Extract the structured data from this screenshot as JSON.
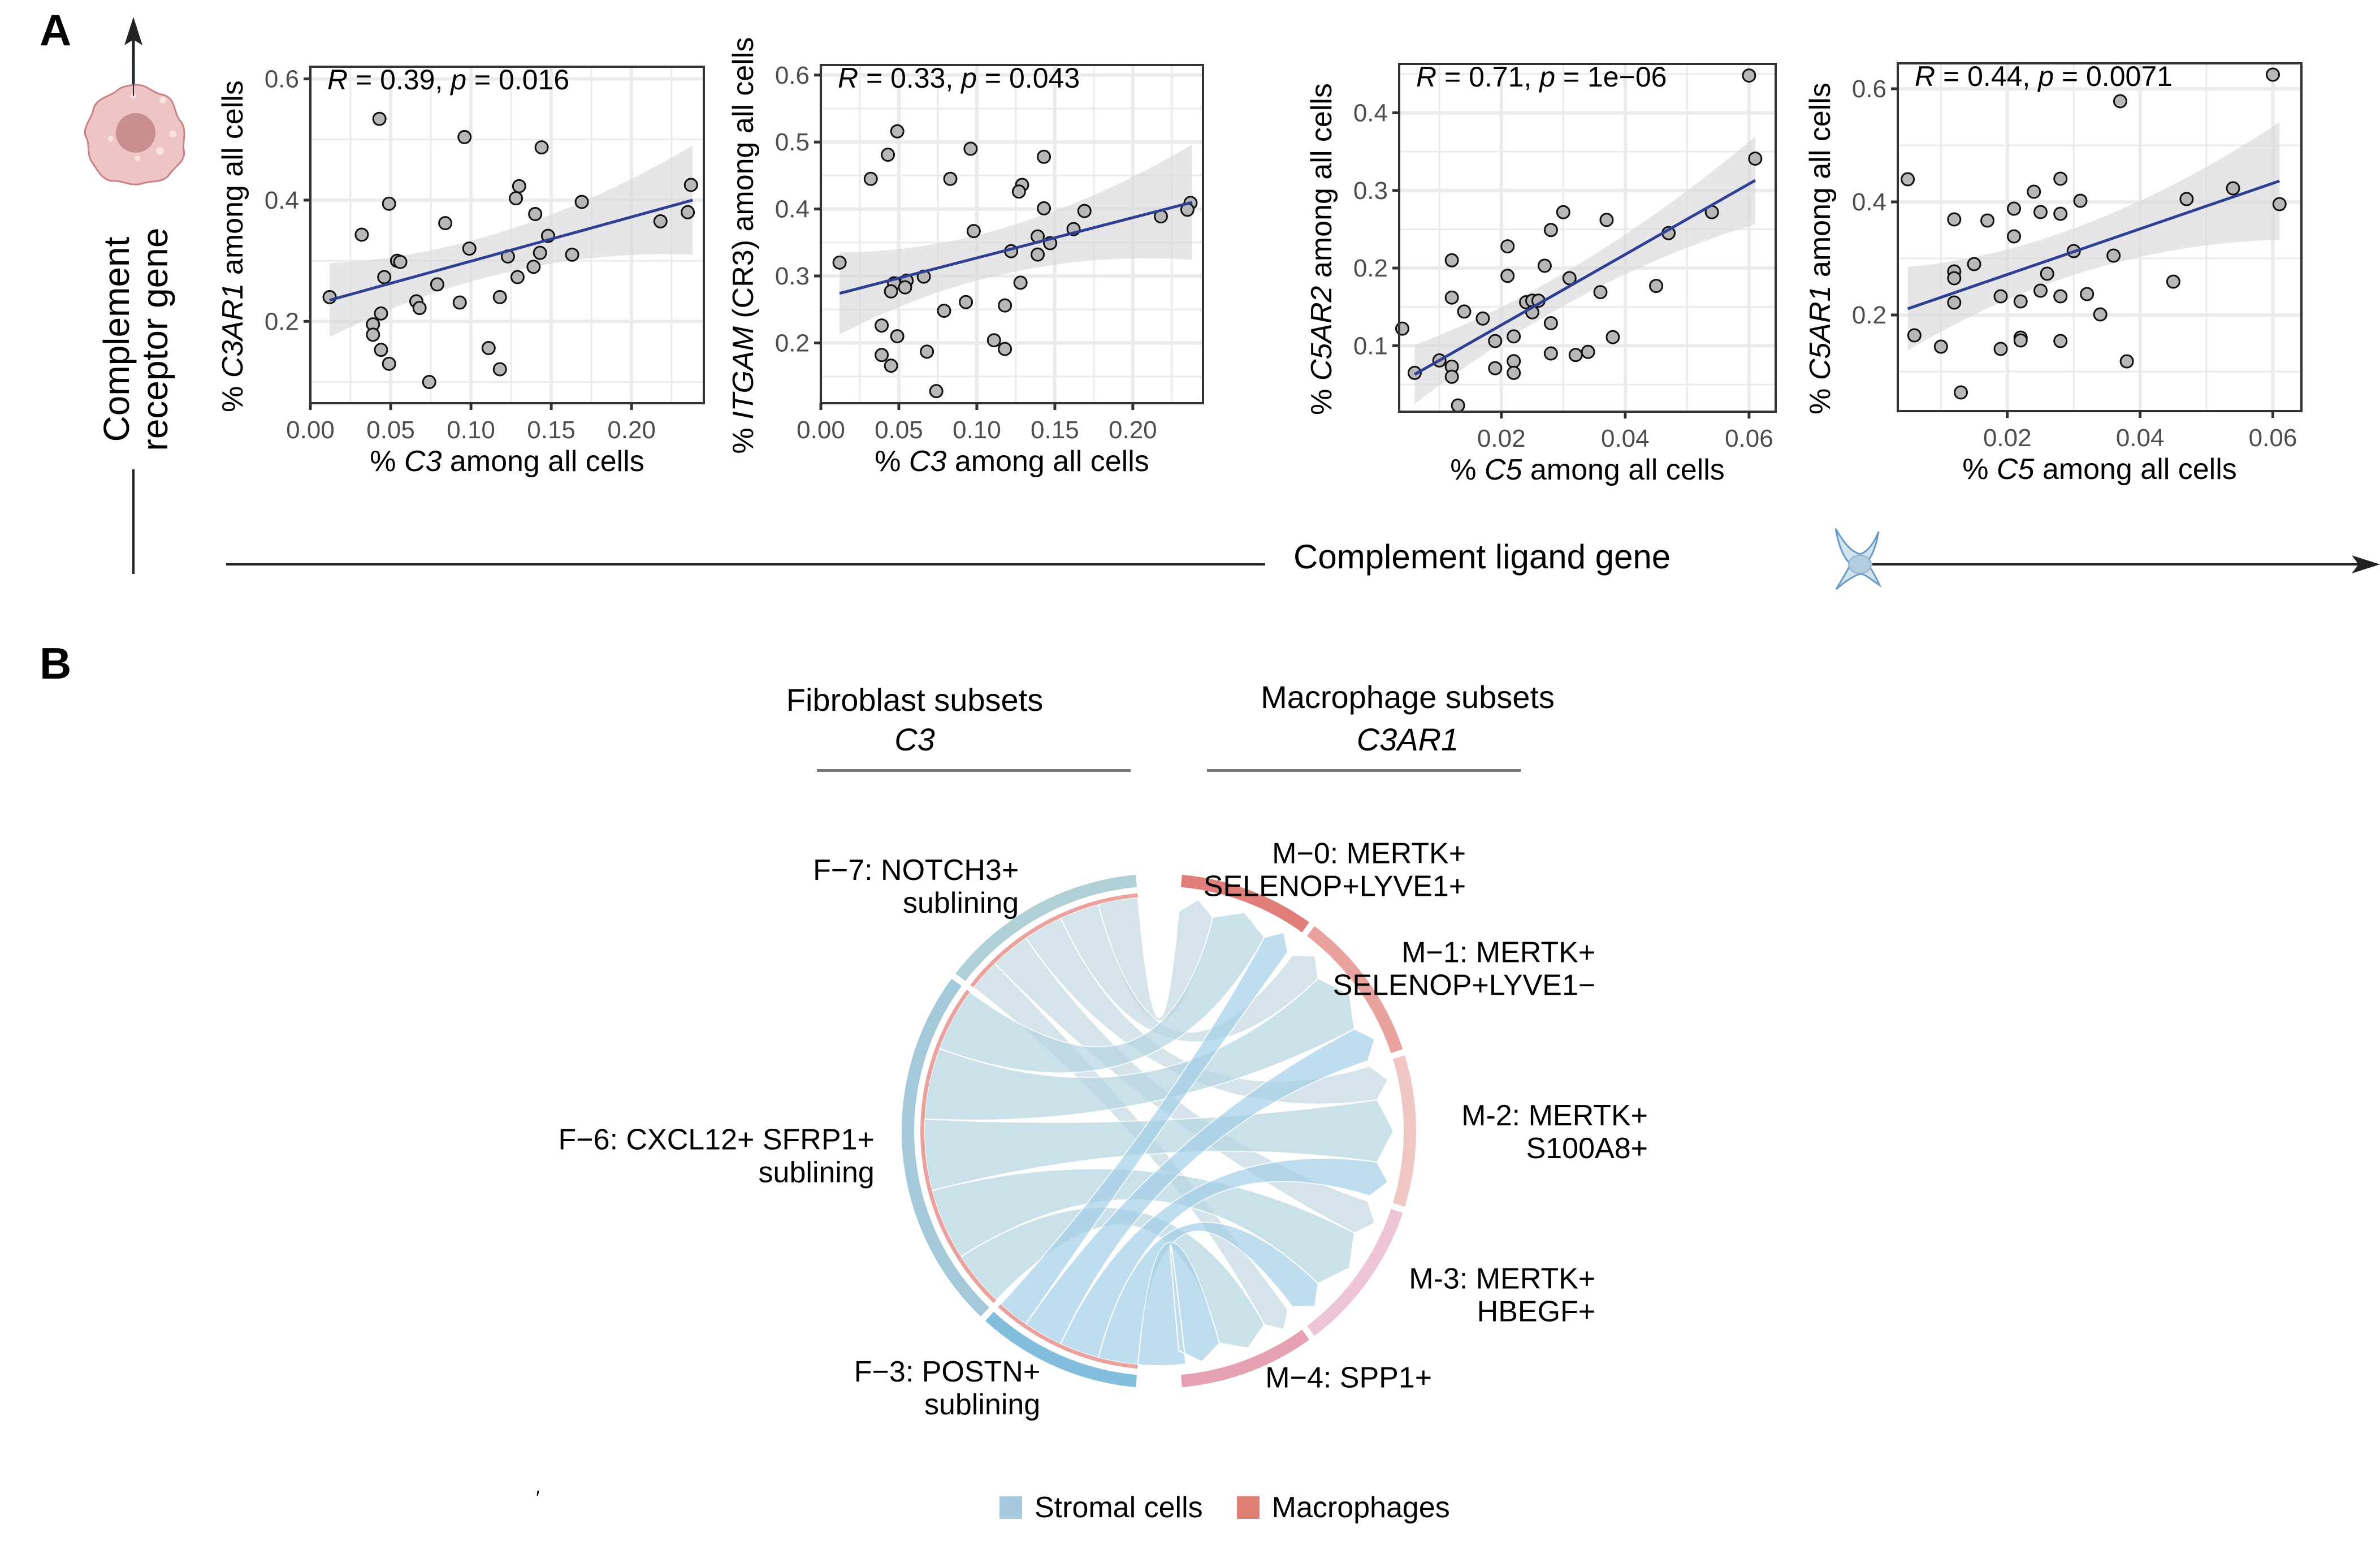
{
  "panels": {
    "A": {
      "letter": "A"
    },
    "B": {
      "letter": "B"
    }
  },
  "axes_annotations": {
    "receptor_axis_label_line1": "Complement",
    "receptor_axis_label_line2": "receptor gene",
    "ligand_axis_label": "Complement ligand gene",
    "receptor_cell_icon": "macrophage-cell-icon",
    "ligand_cell_icon": "fibroblast-cell-icon"
  },
  "chart_data": [
    {
      "type": "scatter",
      "id": "c3-c3ar1",
      "annotation": {
        "R": "0.39",
        "p": "0.016"
      },
      "xlabel": {
        "prefix": "% ",
        "gene": "C3",
        "suffix": " among all cells"
      },
      "ylabel": {
        "prefix": "% ",
        "gene": "C3AR1",
        "suffix": " among all cells"
      },
      "xlim": [
        0.0,
        0.245
      ],
      "ylim": [
        0.065,
        0.62
      ],
      "xticks": [
        0.0,
        0.05,
        0.1,
        0.15,
        0.2
      ],
      "xtick_labels": [
        "0.00",
        "0.05",
        "0.10",
        "0.15",
        "0.20"
      ],
      "yticks": [
        0.2,
        0.4,
        0.6
      ],
      "ytick_labels": [
        "0.2",
        "0.4",
        "0.6"
      ],
      "grid": true,
      "fit": {
        "x": [
          0.012,
          0.238
        ],
        "y": [
          0.235,
          0.4
        ],
        "ci_low": [
          0.168,
          0.31
        ],
        "ci_high": [
          0.29,
          0.49
        ]
      },
      "points": [
        [
          0.043,
          0.534
        ],
        [
          0.096,
          0.504
        ],
        [
          0.144,
          0.487
        ],
        [
          0.13,
          0.423
        ],
        [
          0.128,
          0.403
        ],
        [
          0.049,
          0.394
        ],
        [
          0.169,
          0.397
        ],
        [
          0.237,
          0.425
        ],
        [
          0.14,
          0.377
        ],
        [
          0.235,
          0.38
        ],
        [
          0.218,
          0.365
        ],
        [
          0.084,
          0.362
        ],
        [
          0.032,
          0.343
        ],
        [
          0.148,
          0.341
        ],
        [
          0.099,
          0.32
        ],
        [
          0.054,
          0.3
        ],
        [
          0.056,
          0.298
        ],
        [
          0.143,
          0.313
        ],
        [
          0.123,
          0.307
        ],
        [
          0.163,
          0.31
        ],
        [
          0.046,
          0.273
        ],
        [
          0.139,
          0.29
        ],
        [
          0.129,
          0.273
        ],
        [
          0.079,
          0.261
        ],
        [
          0.012,
          0.24
        ],
        [
          0.066,
          0.233
        ],
        [
          0.068,
          0.222
        ],
        [
          0.093,
          0.231
        ],
        [
          0.118,
          0.24
        ],
        [
          0.044,
          0.213
        ],
        [
          0.039,
          0.195
        ],
        [
          0.039,
          0.178
        ],
        [
          0.044,
          0.153
        ],
        [
          0.049,
          0.13
        ],
        [
          0.111,
          0.156
        ],
        [
          0.118,
          0.121
        ],
        [
          0.074,
          0.1
        ]
      ]
    },
    {
      "type": "scatter",
      "id": "c3-itgam",
      "annotation": {
        "R": "0.33",
        "p": "0.043"
      },
      "xlabel": {
        "prefix": "% ",
        "gene": "C3",
        "suffix": " among all cells"
      },
      "ylabel": {
        "prefix": "% ",
        "gene": "ITGAM",
        "suffix": " (CR3) among all cells"
      },
      "xlim": [
        0.0,
        0.245
      ],
      "ylim": [
        0.11,
        0.615
      ],
      "xticks": [
        0.0,
        0.05,
        0.1,
        0.15,
        0.2
      ],
      "xtick_labels": [
        "0.00",
        "0.05",
        "0.10",
        "0.15",
        "0.20"
      ],
      "yticks": [
        0.2,
        0.3,
        0.4,
        0.5,
        0.6
      ],
      "ytick_labels": [
        "0.2",
        "0.3",
        "0.4",
        "0.5",
        "0.6"
      ],
      "grid": true,
      "fit": {
        "x": [
          0.012,
          0.238
        ],
        "y": [
          0.274,
          0.41
        ],
        "ci_low": [
          0.213,
          0.324
        ],
        "ci_high": [
          0.336,
          0.496
        ]
      },
      "points": [
        [
          0.049,
          0.516
        ],
        [
          0.096,
          0.49
        ],
        [
          0.043,
          0.481
        ],
        [
          0.143,
          0.478
        ],
        [
          0.032,
          0.445
        ],
        [
          0.083,
          0.445
        ],
        [
          0.129,
          0.436
        ],
        [
          0.127,
          0.426
        ],
        [
          0.143,
          0.401
        ],
        [
          0.237,
          0.409
        ],
        [
          0.169,
          0.397
        ],
        [
          0.235,
          0.399
        ],
        [
          0.218,
          0.389
        ],
        [
          0.098,
          0.367
        ],
        [
          0.162,
          0.37
        ],
        [
          0.139,
          0.359
        ],
        [
          0.147,
          0.349
        ],
        [
          0.122,
          0.337
        ],
        [
          0.139,
          0.332
        ],
        [
          0.012,
          0.32
        ],
        [
          0.066,
          0.299
        ],
        [
          0.055,
          0.293
        ],
        [
          0.047,
          0.289
        ],
        [
          0.054,
          0.283
        ],
        [
          0.045,
          0.277
        ],
        [
          0.128,
          0.29
        ],
        [
          0.093,
          0.261
        ],
        [
          0.118,
          0.256
        ],
        [
          0.079,
          0.248
        ],
        [
          0.039,
          0.226
        ],
        [
          0.049,
          0.21
        ],
        [
          0.111,
          0.204
        ],
        [
          0.118,
          0.191
        ],
        [
          0.068,
          0.187
        ],
        [
          0.039,
          0.182
        ],
        [
          0.045,
          0.166
        ],
        [
          0.074,
          0.128
        ]
      ]
    },
    {
      "type": "scatter",
      "id": "c5-c5ar2",
      "annotation": {
        "R": "0.71",
        "p": "1e−06"
      },
      "xlabel": {
        "prefix": "% ",
        "gene": "C5",
        "suffix": " among all cells"
      },
      "ylabel": {
        "prefix": "% ",
        "gene": "C5AR2",
        "suffix": " among all cells"
      },
      "xlim": [
        0.0035,
        0.0643
      ],
      "ylim": [
        0.015,
        0.463
      ],
      "xticks": [
        0.02,
        0.04,
        0.06
      ],
      "xtick_labels": [
        "0.02",
        "0.04",
        "0.06"
      ],
      "yticks": [
        0.1,
        0.2,
        0.3,
        0.4
      ],
      "ytick_labels": [
        "0.1",
        "0.2",
        "0.3",
        "0.4"
      ],
      "grid": true,
      "fit": {
        "x": [
          0.006,
          0.061
        ],
        "y": [
          0.063,
          0.313
        ],
        "ci_low": [
          0.025,
          0.257
        ],
        "ci_high": [
          0.101,
          0.37
        ]
      },
      "points": [
        [
          0.06,
          0.448
        ],
        [
          0.061,
          0.341
        ],
        [
          0.054,
          0.272
        ],
        [
          0.03,
          0.272
        ],
        [
          0.037,
          0.262
        ],
        [
          0.028,
          0.249
        ],
        [
          0.047,
          0.245
        ],
        [
          0.021,
          0.228
        ],
        [
          0.012,
          0.21
        ],
        [
          0.027,
          0.203
        ],
        [
          0.021,
          0.19
        ],
        [
          0.031,
          0.187
        ],
        [
          0.045,
          0.177
        ],
        [
          0.036,
          0.169
        ],
        [
          0.012,
          0.162
        ],
        [
          0.024,
          0.156
        ],
        [
          0.025,
          0.158
        ],
        [
          0.026,
          0.158
        ],
        [
          0.025,
          0.143
        ],
        [
          0.014,
          0.144
        ],
        [
          0.017,
          0.135
        ],
        [
          0.028,
          0.129
        ],
        [
          0.004,
          0.122
        ],
        [
          0.022,
          0.112
        ],
        [
          0.038,
          0.111
        ],
        [
          0.019,
          0.106
        ],
        [
          0.028,
          0.09
        ],
        [
          0.032,
          0.088
        ],
        [
          0.034,
          0.092
        ],
        [
          0.01,
          0.081
        ],
        [
          0.022,
          0.08
        ],
        [
          0.012,
          0.073
        ],
        [
          0.019,
          0.071
        ],
        [
          0.006,
          0.065
        ],
        [
          0.022,
          0.065
        ],
        [
          0.012,
          0.06
        ],
        [
          0.013,
          0.023
        ]
      ]
    },
    {
      "type": "scatter",
      "id": "c5-c5ar1",
      "annotation": {
        "R": "0.44",
        "p": "0.0071"
      },
      "xlabel": {
        "prefix": "% ",
        "gene": "C5",
        "suffix": " among all cells"
      },
      "ylabel": {
        "prefix": "% ",
        "gene": "C5AR1",
        "suffix": " among all cells"
      },
      "xlim": [
        0.0035,
        0.0643
      ],
      "ylim": [
        0.03,
        0.645
      ],
      "xticks": [
        0.02,
        0.04,
        0.06
      ],
      "xtick_labels": [
        "0.02",
        "0.04",
        "0.06"
      ],
      "yticks": [
        0.2,
        0.4,
        0.6
      ],
      "ytick_labels": [
        "0.2",
        "0.4",
        "0.6"
      ],
      "grid": true,
      "fit": {
        "x": [
          0.005,
          0.061
        ],
        "y": [
          0.211,
          0.437
        ],
        "ci_low": [
          0.134,
          0.33
        ],
        "ci_high": [
          0.282,
          0.538
        ]
      },
      "points": [
        [
          0.06,
          0.625
        ],
        [
          0.037,
          0.578
        ],
        [
          0.005,
          0.44
        ],
        [
          0.028,
          0.441
        ],
        [
          0.024,
          0.418
        ],
        [
          0.054,
          0.424
        ],
        [
          0.031,
          0.402
        ],
        [
          0.047,
          0.405
        ],
        [
          0.061,
          0.396
        ],
        [
          0.021,
          0.388
        ],
        [
          0.025,
          0.382
        ],
        [
          0.028,
          0.379
        ],
        [
          0.012,
          0.369
        ],
        [
          0.017,
          0.367
        ],
        [
          0.021,
          0.339
        ],
        [
          0.03,
          0.313
        ],
        [
          0.036,
          0.305
        ],
        [
          0.015,
          0.29
        ],
        [
          0.012,
          0.277
        ],
        [
          0.012,
          0.265
        ],
        [
          0.026,
          0.273
        ],
        [
          0.045,
          0.259
        ],
        [
          0.025,
          0.243
        ],
        [
          0.032,
          0.237
        ],
        [
          0.019,
          0.233
        ],
        [
          0.028,
          0.233
        ],
        [
          0.022,
          0.224
        ],
        [
          0.012,
          0.222
        ],
        [
          0.034,
          0.201
        ],
        [
          0.006,
          0.164
        ],
        [
          0.022,
          0.16
        ],
        [
          0.022,
          0.155
        ],
        [
          0.01,
          0.144
        ],
        [
          0.019,
          0.14
        ],
        [
          0.028,
          0.154
        ],
        [
          0.038,
          0.118
        ],
        [
          0.013,
          0.063
        ]
      ]
    },
    {
      "type": "chord",
      "id": "c3-c3ar1-chord",
      "left_group": {
        "title": "Fibroblast subsets",
        "gene": "C3"
      },
      "right_group": {
        "title": "Macrophage subsets",
        "gene": "C3AR1"
      },
      "sectors": [
        {
          "id": "F-7",
          "label_line1": "F−7: NOTCH3+",
          "label_line2": "sublining",
          "side": "left",
          "color": "#b0cfd6",
          "size": 2.4
        },
        {
          "id": "F-6",
          "label_line1": "F−6: CXCL12+ SFRP1+",
          "label_line2": "sublining",
          "side": "left",
          "color": "#a4c9da",
          "size": 4.2
        },
        {
          "id": "F-3",
          "label_line1": "F−3: POSTN+",
          "label_line2": "sublining",
          "side": "left",
          "color": "#83bedf",
          "size": 1.9
        },
        {
          "id": "M-0",
          "label_line1": "M−0: MERTK+",
          "label_line2": "SELENOP+LYVE1+",
          "side": "right",
          "color": "#e07f79",
          "size": 1.7
        },
        {
          "id": "M-1",
          "label_line1": "M−1: MERTK+",
          "label_line2": "SELENOP+LYVE1−",
          "side": "right",
          "color": "#e9a29e",
          "size": 1.9
        },
        {
          "id": "M-2",
          "label_line1": "M-2: MERTK+",
          "label_line2": "S100A8+",
          "side": "right",
          "color": "#f0c6c3",
          "size": 1.9
        },
        {
          "id": "M-3",
          "label_line1": "M-3: MERTK+",
          "label_line2": "HBEGF+",
          "side": "right",
          "color": "#edc5d6",
          "size": 1.9
        },
        {
          "id": "M-4",
          "label_line1": "M−4: SPP1+",
          "label_line2": "",
          "side": "right",
          "color": "#e6a2b2",
          "size": 1.7
        }
      ],
      "links": [
        {
          "from": "F-7",
          "to": "M-0",
          "value": 0.5
        },
        {
          "from": "F-7",
          "to": "M-1",
          "value": 0.5
        },
        {
          "from": "F-7",
          "to": "M-2",
          "value": 0.5
        },
        {
          "from": "F-7",
          "to": "M-3",
          "value": 0.5
        },
        {
          "from": "F-7",
          "to": "M-4",
          "value": 0.4
        },
        {
          "from": "F-6",
          "to": "M-0",
          "value": 0.8
        },
        {
          "from": "F-6",
          "to": "M-1",
          "value": 0.9
        },
        {
          "from": "F-6",
          "to": "M-2",
          "value": 0.9
        },
        {
          "from": "F-6",
          "to": "M-3",
          "value": 0.9
        },
        {
          "from": "F-6",
          "to": "M-4",
          "value": 0.7
        },
        {
          "from": "F-3",
          "to": "M-0",
          "value": 0.4
        },
        {
          "from": "F-3",
          "to": "M-1",
          "value": 0.5
        },
        {
          "from": "F-3",
          "to": "M-2",
          "value": 0.5
        },
        {
          "from": "F-3",
          "to": "M-3",
          "value": 0.5
        },
        {
          "from": "F-3",
          "to": "M-4",
          "value": 0.6
        }
      ],
      "legend": [
        {
          "label": "Stromal cells",
          "color": "#a6c8de"
        },
        {
          "label": "Macrophages",
          "color": "#e07f73"
        }
      ]
    }
  ],
  "colors": {
    "fit_line": "#2f3f94",
    "ci_band": "#d9d9db",
    "point_fill": "#b8b8b8",
    "grid": "#ebebeb",
    "axis": "#333333",
    "tick_label": "#4d4d4d"
  },
  "stray_mark": "′"
}
